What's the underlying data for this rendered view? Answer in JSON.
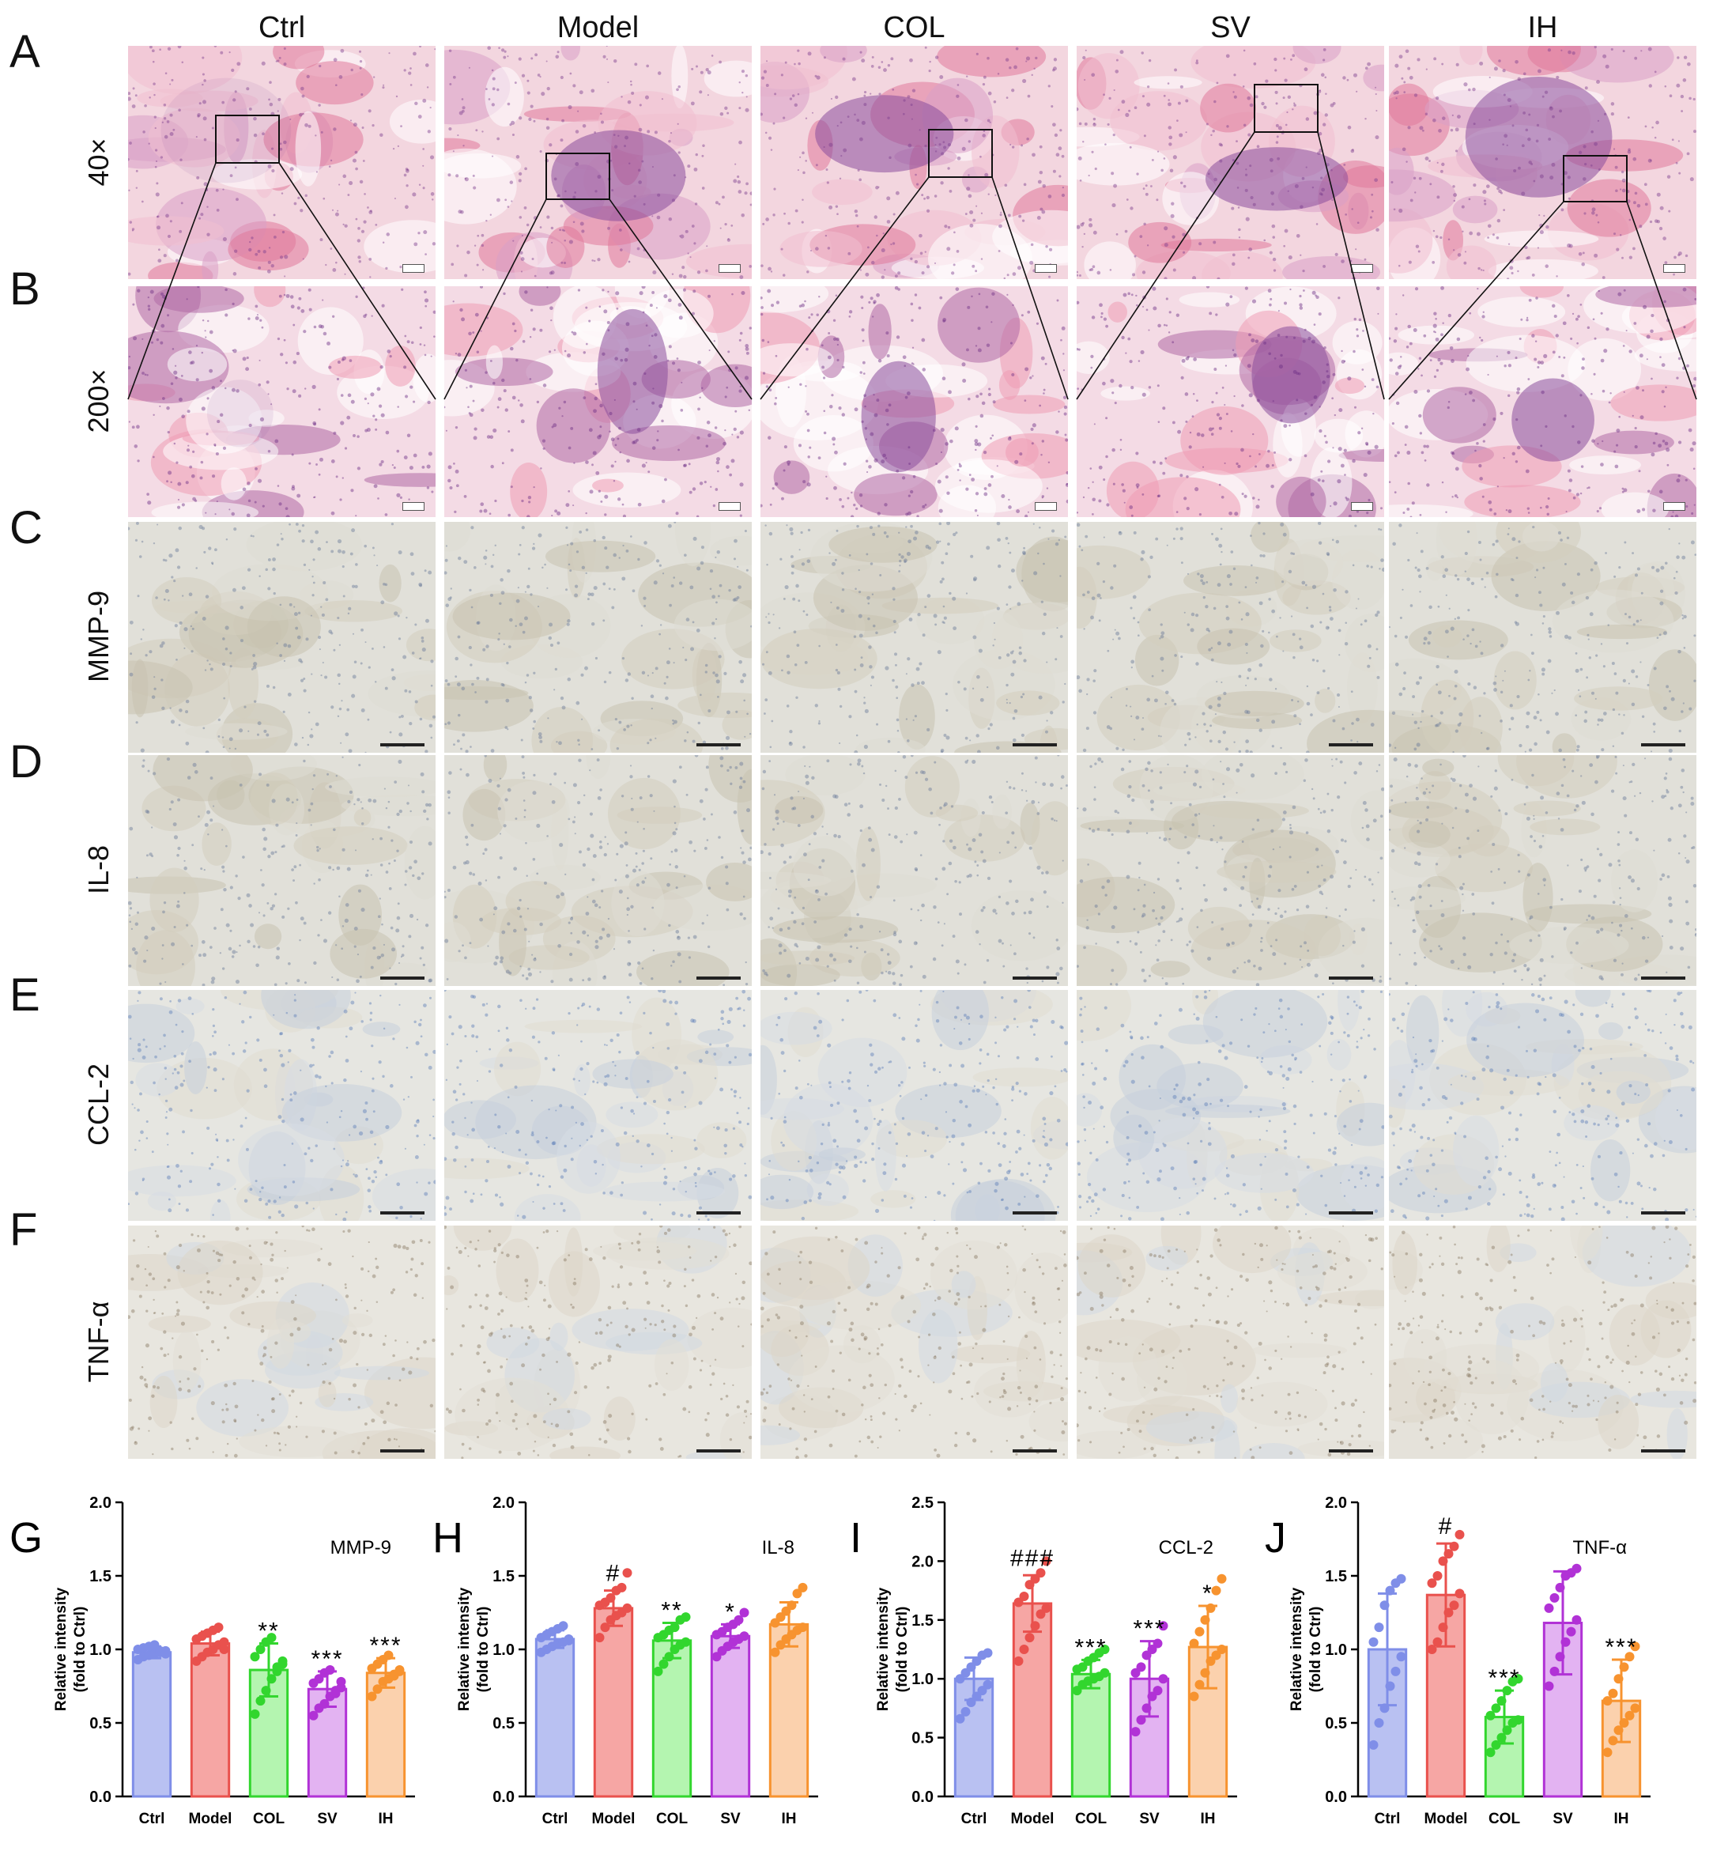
{
  "figure": {
    "columns": [
      "Ctrl",
      "Model",
      "COL",
      "SV",
      "IH"
    ],
    "rows": [
      {
        "letter": "A",
        "label": "40×",
        "stain": "he"
      },
      {
        "letter": "B",
        "label": "200×",
        "stain": "he-zoom"
      },
      {
        "letter": "C",
        "label": "MMP-9",
        "stain": "ihc-brown"
      },
      {
        "letter": "D",
        "label": "IL-8",
        "stain": "ihc-brown"
      },
      {
        "letter": "E",
        "label": "CCL-2",
        "stain": "ihc-blue"
      },
      {
        "letter": "F",
        "label": "TNF-α",
        "stain": "ihc-pale"
      }
    ],
    "colors": {
      "he_pink": "#e8a3b8",
      "he_purple": "#8a4e9c",
      "ihc_bg": "#e3e2dc",
      "ihc_blue": "#a9b9d3",
      "ihc_brown": "#c4b59e"
    }
  },
  "chart_data": [
    {
      "type": "bar",
      "letter": "G",
      "title": "MMP-9",
      "categories": [
        "Ctrl",
        "Model",
        "COL",
        "SV",
        "IH"
      ],
      "values": [
        0.98,
        1.04,
        0.86,
        0.73,
        0.84
      ],
      "errors": [
        0.04,
        0.08,
        0.18,
        0.12,
        0.1
      ],
      "significance": [
        "",
        "",
        "**",
        "***",
        "***"
      ],
      "points": [
        [
          0.93,
          0.95,
          0.96,
          0.97,
          0.98,
          0.99,
          1.0,
          1.01,
          1.02,
          1.03,
          0.99,
          0.97
        ],
        [
          0.92,
          0.95,
          0.98,
          1.0,
          1.03,
          1.05,
          1.07,
          1.09,
          1.11,
          1.13,
          1.15,
          1.0
        ],
        [
          0.56,
          0.65,
          0.72,
          0.8,
          0.85,
          0.9,
          0.95,
          1.0,
          1.05,
          1.08,
          0.88,
          0.92
        ],
        [
          0.55,
          0.6,
          0.63,
          0.68,
          0.72,
          0.74,
          0.77,
          0.8,
          0.84,
          0.86,
          0.7,
          0.78
        ],
        [
          0.68,
          0.73,
          0.78,
          0.8,
          0.83,
          0.85,
          0.87,
          0.9,
          0.93,
          0.96,
          0.82,
          0.86
        ]
      ],
      "ylabel": "Relative intensity\n(fold to Ctrl)",
      "ylim": [
        0,
        2.0
      ],
      "yticks": [
        "0.0",
        "0.5",
        "1.0",
        "1.5",
        "2.0"
      ]
    },
    {
      "type": "bar",
      "letter": "H",
      "title": "IL-8",
      "categories": [
        "Ctrl",
        "Model",
        "COL",
        "SV",
        "IH"
      ],
      "values": [
        1.07,
        1.28,
        1.06,
        1.09,
        1.17
      ],
      "errors": [
        0.06,
        0.12,
        0.12,
        0.08,
        0.15
      ],
      "significance": [
        "",
        "#",
        "**",
        "*",
        ""
      ],
      "points": [
        [
          0.98,
          1.0,
          1.02,
          1.04,
          1.05,
          1.07,
          1.08,
          1.1,
          1.12,
          1.14,
          1.16,
          1.06
        ],
        [
          1.08,
          1.15,
          1.2,
          1.23,
          1.25,
          1.28,
          1.3,
          1.32,
          1.35,
          1.4,
          1.42,
          1.52
        ],
        [
          0.85,
          0.9,
          0.95,
          1.0,
          1.03,
          1.05,
          1.08,
          1.1,
          1.13,
          1.15,
          1.2,
          1.22
        ],
        [
          0.95,
          0.99,
          1.02,
          1.05,
          1.07,
          1.09,
          1.1,
          1.12,
          1.15,
          1.17,
          1.2,
          1.25
        ],
        [
          0.98,
          1.03,
          1.07,
          1.1,
          1.13,
          1.15,
          1.18,
          1.22,
          1.26,
          1.3,
          1.38,
          1.42
        ]
      ],
      "ylabel": "Relative intensity\n(fold to Ctrl)",
      "ylim": [
        0,
        2.0
      ],
      "yticks": [
        "0.0",
        "0.5",
        "1.0",
        "1.5",
        "2.0"
      ]
    },
    {
      "type": "bar",
      "letter": "I",
      "title": "CCL-2",
      "categories": [
        "Ctrl",
        "Model",
        "COL",
        "SV",
        "IH"
      ],
      "values": [
        1.0,
        1.64,
        1.04,
        1.0,
        1.27
      ],
      "errors": [
        0.18,
        0.24,
        0.12,
        0.32,
        0.35
      ],
      "significance": [
        "",
        "###",
        "***",
        "***",
        "*"
      ],
      "points": [
        [
          0.66,
          0.72,
          0.8,
          0.85,
          0.9,
          0.95,
          1.0,
          1.05,
          1.1,
          1.15,
          1.2,
          1.22
        ],
        [
          1.15,
          1.25,
          1.35,
          1.45,
          1.55,
          1.6,
          1.65,
          1.7,
          1.8,
          1.85,
          1.9,
          2.0
        ],
        [
          0.9,
          0.95,
          0.98,
          1.0,
          1.02,
          1.05,
          1.08,
          1.1,
          1.15,
          1.18,
          1.22,
          1.25
        ],
        [
          0.55,
          0.65,
          0.75,
          0.85,
          0.9,
          1.0,
          1.05,
          1.1,
          1.2,
          1.25,
          1.3,
          1.45
        ],
        [
          0.85,
          0.95,
          1.05,
          1.15,
          1.2,
          1.25,
          1.3,
          1.4,
          1.5,
          1.6,
          1.75,
          1.85
        ]
      ],
      "ylabel": "Relative intensity\n(fold to Ctrl)",
      "ylim": [
        0,
        2.5
      ],
      "yticks": [
        "0.0",
        "0.5",
        "1.0",
        "1.5",
        "2.0",
        "2.5"
      ]
    },
    {
      "type": "bar",
      "letter": "J",
      "title": "TNF-α",
      "categories": [
        "Ctrl",
        "Model",
        "COL",
        "SV",
        "IH"
      ],
      "values": [
        1.0,
        1.37,
        0.54,
        1.18,
        0.65
      ],
      "errors": [
        0.38,
        0.35,
        0.18,
        0.35,
        0.28
      ],
      "significance": [
        "",
        "#",
        "***",
        "",
        "***"
      ],
      "points": [
        [
          0.35,
          0.5,
          0.6,
          0.75,
          0.85,
          0.95,
          1.05,
          1.15,
          1.3,
          1.4,
          1.45,
          1.48
        ],
        [
          1.0,
          1.05,
          1.15,
          1.25,
          1.3,
          1.38,
          1.45,
          1.5,
          1.6,
          1.65,
          1.7,
          1.78
        ],
        [
          0.3,
          0.35,
          0.4,
          0.45,
          0.5,
          0.52,
          0.55,
          0.6,
          0.65,
          0.72,
          0.78,
          0.8
        ],
        [
          0.75,
          0.85,
          0.95,
          1.05,
          1.12,
          1.2,
          1.28,
          1.35,
          1.42,
          1.5,
          1.52,
          1.55
        ],
        [
          0.3,
          0.38,
          0.45,
          0.5,
          0.55,
          0.6,
          0.65,
          0.7,
          0.8,
          0.88,
          0.95,
          1.02
        ]
      ],
      "ylabel": "Relative intensity\n(fold to Ctrl)",
      "ylim": [
        0,
        2.0
      ],
      "yticks": [
        "0.0",
        "0.5",
        "1.0",
        "1.5",
        "2.0"
      ]
    }
  ],
  "chart_style": {
    "fills": [
      "#b9c1f2",
      "#f6a6a4",
      "#b4f5b0",
      "#e3b3f2",
      "#fbd1ad"
    ],
    "strokes": [
      "#7f8ee8",
      "#e9514d",
      "#32d62e",
      "#b132d6",
      "#f7932f"
    ]
  }
}
